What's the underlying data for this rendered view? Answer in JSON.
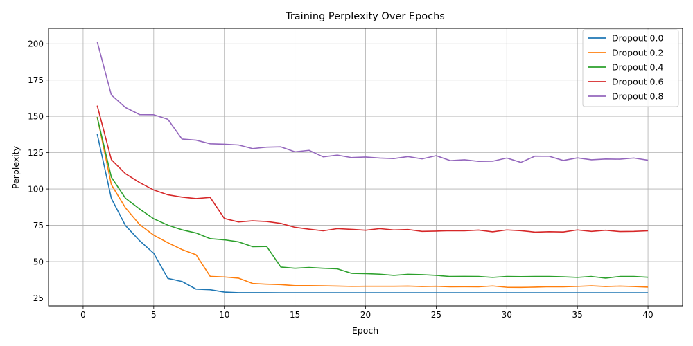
{
  "chart_data": {
    "type": "line",
    "title": "Training Perplexity Over Epochs",
    "xlabel": "Epoch",
    "ylabel": "Perplexity",
    "xlim": [
      -2.45,
      42.45
    ],
    "ylim": [
      19.5,
      210.6
    ],
    "xticks": [
      0,
      5,
      10,
      15,
      20,
      25,
      30,
      35,
      40
    ],
    "yticks": [
      25,
      50,
      75,
      100,
      125,
      150,
      175,
      200
    ],
    "grid": true,
    "legend_position": "top-right",
    "x": [
      1,
      2,
      3,
      4,
      5,
      6,
      7,
      8,
      9,
      10,
      11,
      12,
      13,
      14,
      15,
      16,
      17,
      18,
      19,
      20,
      21,
      22,
      23,
      24,
      25,
      26,
      27,
      28,
      29,
      30,
      31,
      32,
      33,
      34,
      35,
      36,
      37,
      38,
      39,
      40
    ],
    "series": [
      {
        "name": "Dropout 0.0",
        "color": "#1f77b4",
        "values": [
          137.8,
          93.5,
          74.8,
          64.4,
          55.7,
          38.4,
          36.3,
          31.0,
          30.6,
          29.0,
          28.6,
          28.6,
          28.6,
          28.5,
          28.5,
          28.5,
          28.5,
          28.5,
          28.5,
          28.5,
          28.5,
          28.5,
          28.5,
          28.5,
          28.5,
          28.5,
          28.5,
          28.5,
          28.5,
          28.5,
          28.5,
          28.5,
          28.5,
          28.5,
          28.5,
          28.5,
          28.5,
          28.5,
          28.5,
          28.5
        ]
      },
      {
        "name": "Dropout 0.2",
        "color": "#ff7f0e",
        "values": [
          149.6,
          103.0,
          87.0,
          75.5,
          68.2,
          63.0,
          58.3,
          54.7,
          39.8,
          39.4,
          38.6,
          34.9,
          34.4,
          34.1,
          33.4,
          33.4,
          33.3,
          33.1,
          32.9,
          33.0,
          33.0,
          33.0,
          33.1,
          32.8,
          33.0,
          32.6,
          32.7,
          32.6,
          33.2,
          32.3,
          32.2,
          32.4,
          32.7,
          32.6,
          32.9,
          33.3,
          32.8,
          33.1,
          32.8,
          32.4
        ]
      },
      {
        "name": "Dropout 0.4",
        "color": "#2ca02c",
        "values": [
          149.4,
          108.1,
          93.6,
          86.2,
          79.5,
          75.1,
          71.9,
          69.7,
          65.8,
          65.0,
          63.6,
          60.3,
          60.4,
          46.2,
          45.4,
          45.9,
          45.4,
          45.0,
          41.9,
          41.7,
          41.3,
          40.5,
          41.2,
          41.0,
          40.5,
          39.7,
          39.8,
          39.7,
          39.1,
          39.7,
          39.6,
          39.7,
          39.7,
          39.5,
          39.1,
          39.7,
          38.6,
          39.7,
          39.7,
          39.2
        ]
      },
      {
        "name": "Dropout 0.6",
        "color": "#d62728",
        "values": [
          157.4,
          120.2,
          110.5,
          104.4,
          99.3,
          96.0,
          94.4,
          93.4,
          94.2,
          79.7,
          77.3,
          78.1,
          77.6,
          76.3,
          73.6,
          72.3,
          71.2,
          72.7,
          72.2,
          71.6,
          72.7,
          71.8,
          72.1,
          70.8,
          71.0,
          71.3,
          71.2,
          71.7,
          70.5,
          71.8,
          71.3,
          70.3,
          70.6,
          70.4,
          71.8,
          70.8,
          71.6,
          70.7,
          70.8,
          71.2
        ]
      },
      {
        "name": "Dropout 0.8",
        "color": "#9467bd",
        "values": [
          201.4,
          164.7,
          156.1,
          151.2,
          151.1,
          148.0,
          134.4,
          133.6,
          131.1,
          130.8,
          130.3,
          127.8,
          128.8,
          129.0,
          125.6,
          126.6,
          122.1,
          123.3,
          121.6,
          122.0,
          121.3,
          120.9,
          122.3,
          120.7,
          122.9,
          119.5,
          120.1,
          119.0,
          119.1,
          121.3,
          118.3,
          122.6,
          122.5,
          119.6,
          121.4,
          120.1,
          120.6,
          120.5,
          121.3,
          119.8
        ]
      }
    ]
  }
}
